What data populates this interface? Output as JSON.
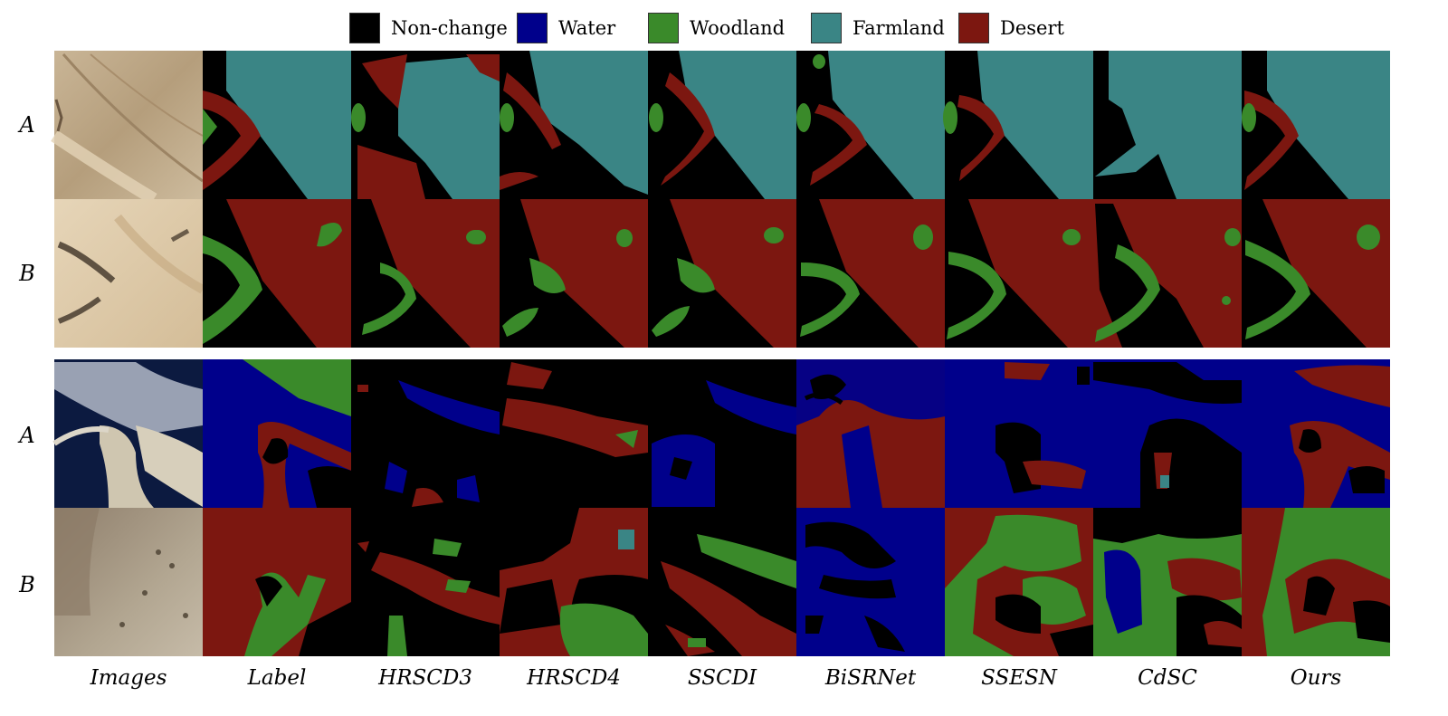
{
  "legend": [
    {
      "label": "Non-change",
      "color": "#000000"
    },
    {
      "label": "Water",
      "color": "#00008b"
    },
    {
      "label": "Woodland",
      "color": "#3a8a2a"
    },
    {
      "label": "Farmland",
      "color": "#3a8585"
    },
    {
      "label": "Desert",
      "color": "#7c1710"
    }
  ],
  "row_labels": [
    "A",
    "B",
    "A",
    "B"
  ],
  "column_labels": [
    "Images",
    "Label",
    "HRSCD3",
    "HRSCD4",
    "SSCDI",
    "BiSRNet",
    "SSESN",
    "CdSC",
    "Ours"
  ],
  "colors": {
    "nonchange": "#000000",
    "water": "#00008b",
    "woodland": "#3a8a2a",
    "farmland": "#3a8585",
    "desert": "#7c1710",
    "sand_light": "#dcc8a8",
    "sand_dark": "#b8a078",
    "blue_dark": "#0c1a40",
    "mud_gray": "#b5aa98"
  }
}
